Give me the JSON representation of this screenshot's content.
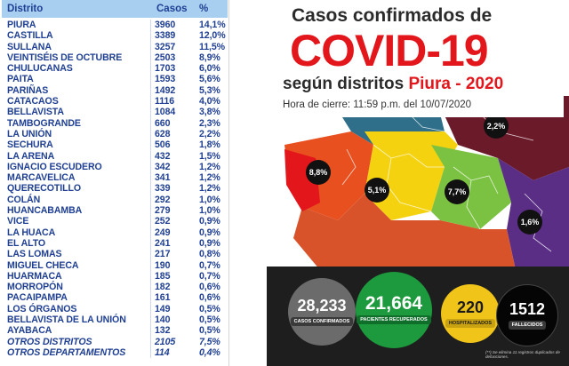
{
  "table": {
    "headers": {
      "district": "Distrito",
      "cases": "Casos",
      "percent": "%"
    },
    "rows": [
      {
        "district": "PIURA",
        "cases": "3960",
        "percent": "14,1%"
      },
      {
        "district": "CASTILLA",
        "cases": "3389",
        "percent": "12,0%"
      },
      {
        "district": "SULLANA",
        "cases": "3257",
        "percent": "11,5%"
      },
      {
        "district": "VEINTISÉIS DE OCTUBRE",
        "cases": "2503",
        "percent": "8,9%"
      },
      {
        "district": "CHULUCANAS",
        "cases": "1703",
        "percent": "6,0%"
      },
      {
        "district": "PAITA",
        "cases": "1593",
        "percent": "5,6%"
      },
      {
        "district": "PARIÑAS",
        "cases": "1492",
        "percent": "5,3%"
      },
      {
        "district": "CATACAOS",
        "cases": "1116",
        "percent": "4,0%"
      },
      {
        "district": "BELLAVISTA",
        "cases": "1084",
        "percent": "3,8%"
      },
      {
        "district": "TAMBOGRANDE",
        "cases": "660",
        "percent": "2,3%"
      },
      {
        "district": "LA UNIÓN",
        "cases": "628",
        "percent": "2,2%"
      },
      {
        "district": "SECHURA",
        "cases": "506",
        "percent": "1,8%"
      },
      {
        "district": "LA ARENA",
        "cases": "432",
        "percent": "1,5%"
      },
      {
        "district": "IGNACIO ESCUDERO",
        "cases": "342",
        "percent": "1,2%"
      },
      {
        "district": "MARCAVELICA",
        "cases": "341",
        "percent": "1,2%"
      },
      {
        "district": "QUERECOTILLO",
        "cases": "339",
        "percent": "1,2%"
      },
      {
        "district": "COLÁN",
        "cases": "292",
        "percent": "1,0%"
      },
      {
        "district": "HUANCABAMBA",
        "cases": "279",
        "percent": "1,0%"
      },
      {
        "district": "VICE",
        "cases": "252",
        "percent": "0,9%"
      },
      {
        "district": "LA HUACA",
        "cases": "249",
        "percent": "0,9%"
      },
      {
        "district": "EL ALTO",
        "cases": "241",
        "percent": "0,9%"
      },
      {
        "district": "LAS LOMAS",
        "cases": "217",
        "percent": "0,8%"
      },
      {
        "district": "MIGUEL CHECA",
        "cases": "190",
        "percent": "0,7%"
      },
      {
        "district": "HUARMACA",
        "cases": "185",
        "percent": "0,7%"
      },
      {
        "district": "MORROPÓN",
        "cases": "182",
        "percent": "0,6%"
      },
      {
        "district": "PACAIPAMPA",
        "cases": "161",
        "percent": "0,6%"
      },
      {
        "district": "LOS ÓRGANOS",
        "cases": "149",
        "percent": "0,5%"
      },
      {
        "district": "BELLAVISTA DE LA UNIÓN",
        "cases": "140",
        "percent": "0,5%"
      },
      {
        "district": "AYABACA",
        "cases": "132",
        "percent": "0,5%"
      },
      {
        "district": "OTROS DISTRITOS",
        "cases": "2105",
        "percent": "7,5%"
      },
      {
        "district": "OTROS DEPARTAMENTOS",
        "cases": "114",
        "percent": "0,4%"
      }
    ]
  },
  "infographic": {
    "title_line1": "Casos confirmados de",
    "title_line2": "COVID-19",
    "title_line3_a": "según distritos",
    "title_line3_b": "Piura - 2020",
    "closing_time": "Hora de cierre: 11:59 p.m. del 10/07/2020",
    "map_badges": [
      "8,8%",
      "5,1%",
      "7,7%",
      "1,6%",
      "2,2%"
    ],
    "stats": [
      {
        "value": "28,233",
        "label": "CASOS CONFIRMADOS"
      },
      {
        "value": "21,664",
        "label": "PACIENTES RECUPERADOS"
      },
      {
        "value": "220",
        "label": "HOSPITALIZADOS"
      },
      {
        "value": "1512",
        "label": "FALLECIDOS"
      }
    ],
    "footnote": "(**) Se elimina 11 registros duplicados de defunciones.",
    "colors": {
      "red": "#e3161c",
      "green": "#1c9a3d",
      "yellow": "#f0c419",
      "map_orange": "#f29a1d",
      "map_yellow": "#f4d20f",
      "map_purple": "#5b2e86",
      "map_maroon": "#6b1a2a",
      "map_teal": "#2f6f8a"
    }
  }
}
